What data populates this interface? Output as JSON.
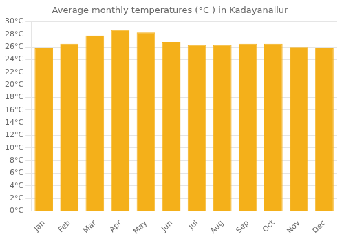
{
  "chart_data": {
    "type": "bar",
    "title": "Average monthly temperatures (°C ) in Kadayanallur",
    "categories": [
      "Jan",
      "Feb",
      "Mar",
      "Apr",
      "May",
      "Jun",
      "Jul",
      "Aug",
      "Sep",
      "Oct",
      "Nov",
      "Dec"
    ],
    "values": [
      25.8,
      26.5,
      27.8,
      28.7,
      28.3,
      26.8,
      26.3,
      26.3,
      26.5,
      26.5,
      26.0,
      25.8
    ],
    "color": "#F4B01A",
    "ylim": [
      0,
      30
    ],
    "yticks": [
      {
        "value": 0,
        "label": "0°C"
      },
      {
        "value": 2,
        "label": "2°C"
      },
      {
        "value": 4,
        "label": "4°C"
      },
      {
        "value": 6,
        "label": "6°C"
      },
      {
        "value": 8,
        "label": "8°C"
      },
      {
        "value": 10,
        "label": "10°C"
      },
      {
        "value": 12,
        "label": "12°C"
      },
      {
        "value": 14,
        "label": "14°C"
      },
      {
        "value": 16,
        "label": "16°C"
      },
      {
        "value": 18,
        "label": "18°C"
      },
      {
        "value": 20,
        "label": "20°C"
      },
      {
        "value": 22,
        "label": "22°C"
      },
      {
        "value": 24,
        "label": "24°C"
      },
      {
        "value": 26,
        "label": "26°C"
      },
      {
        "value": 28,
        "label": "28°C"
      },
      {
        "value": 30,
        "label": "30°C"
      }
    ],
    "grid": true
  }
}
